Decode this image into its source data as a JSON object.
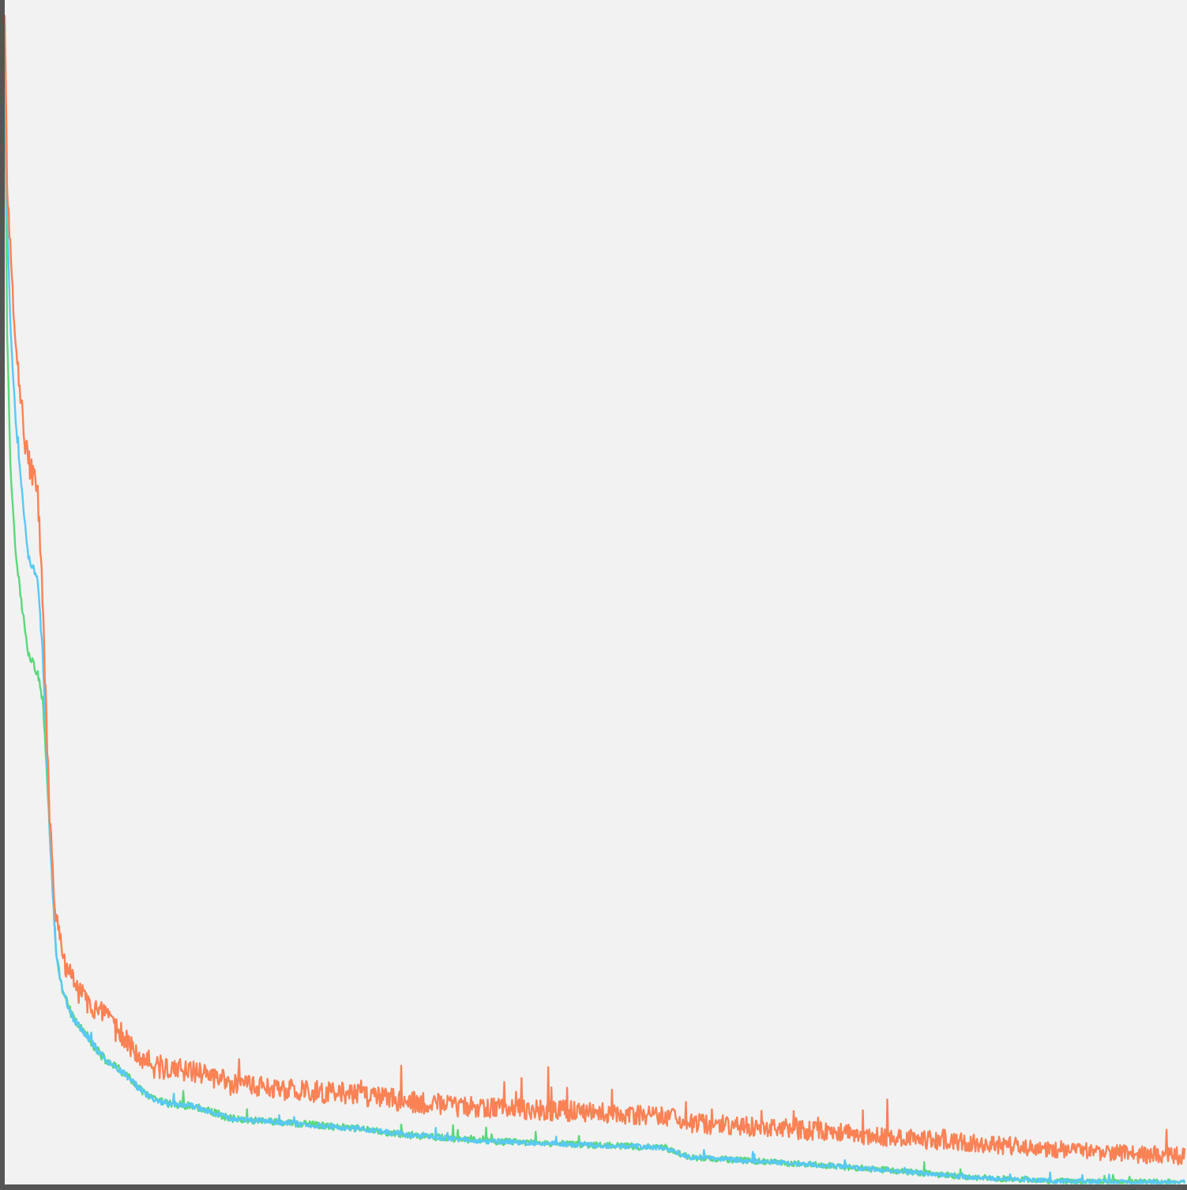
{
  "chart_data": {
    "type": "line",
    "title": "",
    "xlabel": "",
    "ylabel": "",
    "xlim": [
      0,
      1
    ],
    "ylim": [
      0,
      1
    ],
    "grid": false,
    "legend": "none",
    "background_color": "#f2f2f2",
    "axis_color": "#555555",
    "series": [
      {
        "color": "#5bd87a",
        "noise": 0.004,
        "points": [
          [
            0.0,
            0.98
          ],
          [
            0.002,
            0.72
          ],
          [
            0.005,
            0.6
          ],
          [
            0.009,
            0.54
          ],
          [
            0.013,
            0.5
          ],
          [
            0.017,
            0.47
          ],
          [
            0.02,
            0.45
          ],
          [
            0.024,
            0.44
          ],
          [
            0.028,
            0.43
          ],
          [
            0.032,
            0.41
          ],
          [
            0.035,
            0.36
          ],
          [
            0.038,
            0.3
          ],
          [
            0.041,
            0.24
          ],
          [
            0.044,
            0.19
          ],
          [
            0.05,
            0.16
          ],
          [
            0.058,
            0.14
          ],
          [
            0.07,
            0.125
          ],
          [
            0.085,
            0.105
          ],
          [
            0.1,
            0.095
          ],
          [
            0.115,
            0.08
          ],
          [
            0.125,
            0.072
          ],
          [
            0.14,
            0.068
          ],
          [
            0.16,
            0.066
          ],
          [
            0.18,
            0.06
          ],
          [
            0.19,
            0.056
          ],
          [
            0.24,
            0.052
          ],
          [
            0.3,
            0.047
          ],
          [
            0.34,
            0.042
          ],
          [
            0.4,
            0.037
          ],
          [
            0.48,
            0.034
          ],
          [
            0.56,
            0.031
          ],
          [
            0.58,
            0.023
          ],
          [
            0.65,
            0.019
          ],
          [
            0.75,
            0.012
          ],
          [
            0.82,
            0.006
          ],
          [
            0.89,
            0.003
          ],
          [
            0.95,
            0.002
          ],
          [
            1.0,
            0.002
          ]
        ]
      },
      {
        "color": "#59c8f5",
        "noise": 0.003,
        "points": [
          [
            0.0,
            0.98
          ],
          [
            0.002,
            0.82
          ],
          [
            0.005,
            0.72
          ],
          [
            0.009,
            0.65
          ],
          [
            0.013,
            0.6
          ],
          [
            0.017,
            0.56
          ],
          [
            0.02,
            0.53
          ],
          [
            0.024,
            0.52
          ],
          [
            0.028,
            0.51
          ],
          [
            0.032,
            0.45
          ],
          [
            0.035,
            0.38
          ],
          [
            0.038,
            0.3
          ],
          [
            0.041,
            0.24
          ],
          [
            0.044,
            0.19
          ],
          [
            0.05,
            0.16
          ],
          [
            0.058,
            0.14
          ],
          [
            0.07,
            0.125
          ],
          [
            0.085,
            0.105
          ],
          [
            0.1,
            0.095
          ],
          [
            0.115,
            0.08
          ],
          [
            0.125,
            0.072
          ],
          [
            0.14,
            0.068
          ],
          [
            0.16,
            0.066
          ],
          [
            0.18,
            0.06
          ],
          [
            0.19,
            0.056
          ],
          [
            0.24,
            0.052
          ],
          [
            0.3,
            0.047
          ],
          [
            0.34,
            0.042
          ],
          [
            0.4,
            0.037
          ],
          [
            0.48,
            0.034
          ],
          [
            0.56,
            0.031
          ],
          [
            0.58,
            0.023
          ],
          [
            0.65,
            0.019
          ],
          [
            0.75,
            0.012
          ],
          [
            0.82,
            0.006
          ],
          [
            0.89,
            0.003
          ],
          [
            0.95,
            0.002
          ],
          [
            1.0,
            0.002
          ]
        ]
      },
      {
        "color": "#fb8255",
        "noise": 0.011,
        "points": [
          [
            0.0,
            0.99
          ],
          [
            0.002,
            0.85
          ],
          [
            0.005,
            0.78
          ],
          [
            0.009,
            0.72
          ],
          [
            0.013,
            0.67
          ],
          [
            0.017,
            0.63
          ],
          [
            0.02,
            0.61
          ],
          [
            0.024,
            0.6
          ],
          [
            0.028,
            0.58
          ],
          [
            0.032,
            0.5
          ],
          [
            0.035,
            0.4
          ],
          [
            0.038,
            0.31
          ],
          [
            0.041,
            0.26
          ],
          [
            0.044,
            0.22
          ],
          [
            0.05,
            0.19
          ],
          [
            0.058,
            0.17
          ],
          [
            0.07,
            0.155
          ],
          [
            0.085,
            0.14
          ],
          [
            0.1,
            0.125
          ],
          [
            0.115,
            0.11
          ],
          [
            0.125,
            0.1
          ],
          [
            0.14,
            0.098
          ],
          [
            0.16,
            0.095
          ],
          [
            0.18,
            0.09
          ],
          [
            0.19,
            0.085
          ],
          [
            0.24,
            0.08
          ],
          [
            0.3,
            0.076
          ],
          [
            0.34,
            0.07
          ],
          [
            0.4,
            0.065
          ],
          [
            0.48,
            0.062
          ],
          [
            0.56,
            0.058
          ],
          [
            0.58,
            0.052
          ],
          [
            0.65,
            0.048
          ],
          [
            0.75,
            0.04
          ],
          [
            0.82,
            0.035
          ],
          [
            0.89,
            0.03
          ],
          [
            0.95,
            0.026
          ],
          [
            1.0,
            0.024
          ]
        ]
      }
    ]
  }
}
